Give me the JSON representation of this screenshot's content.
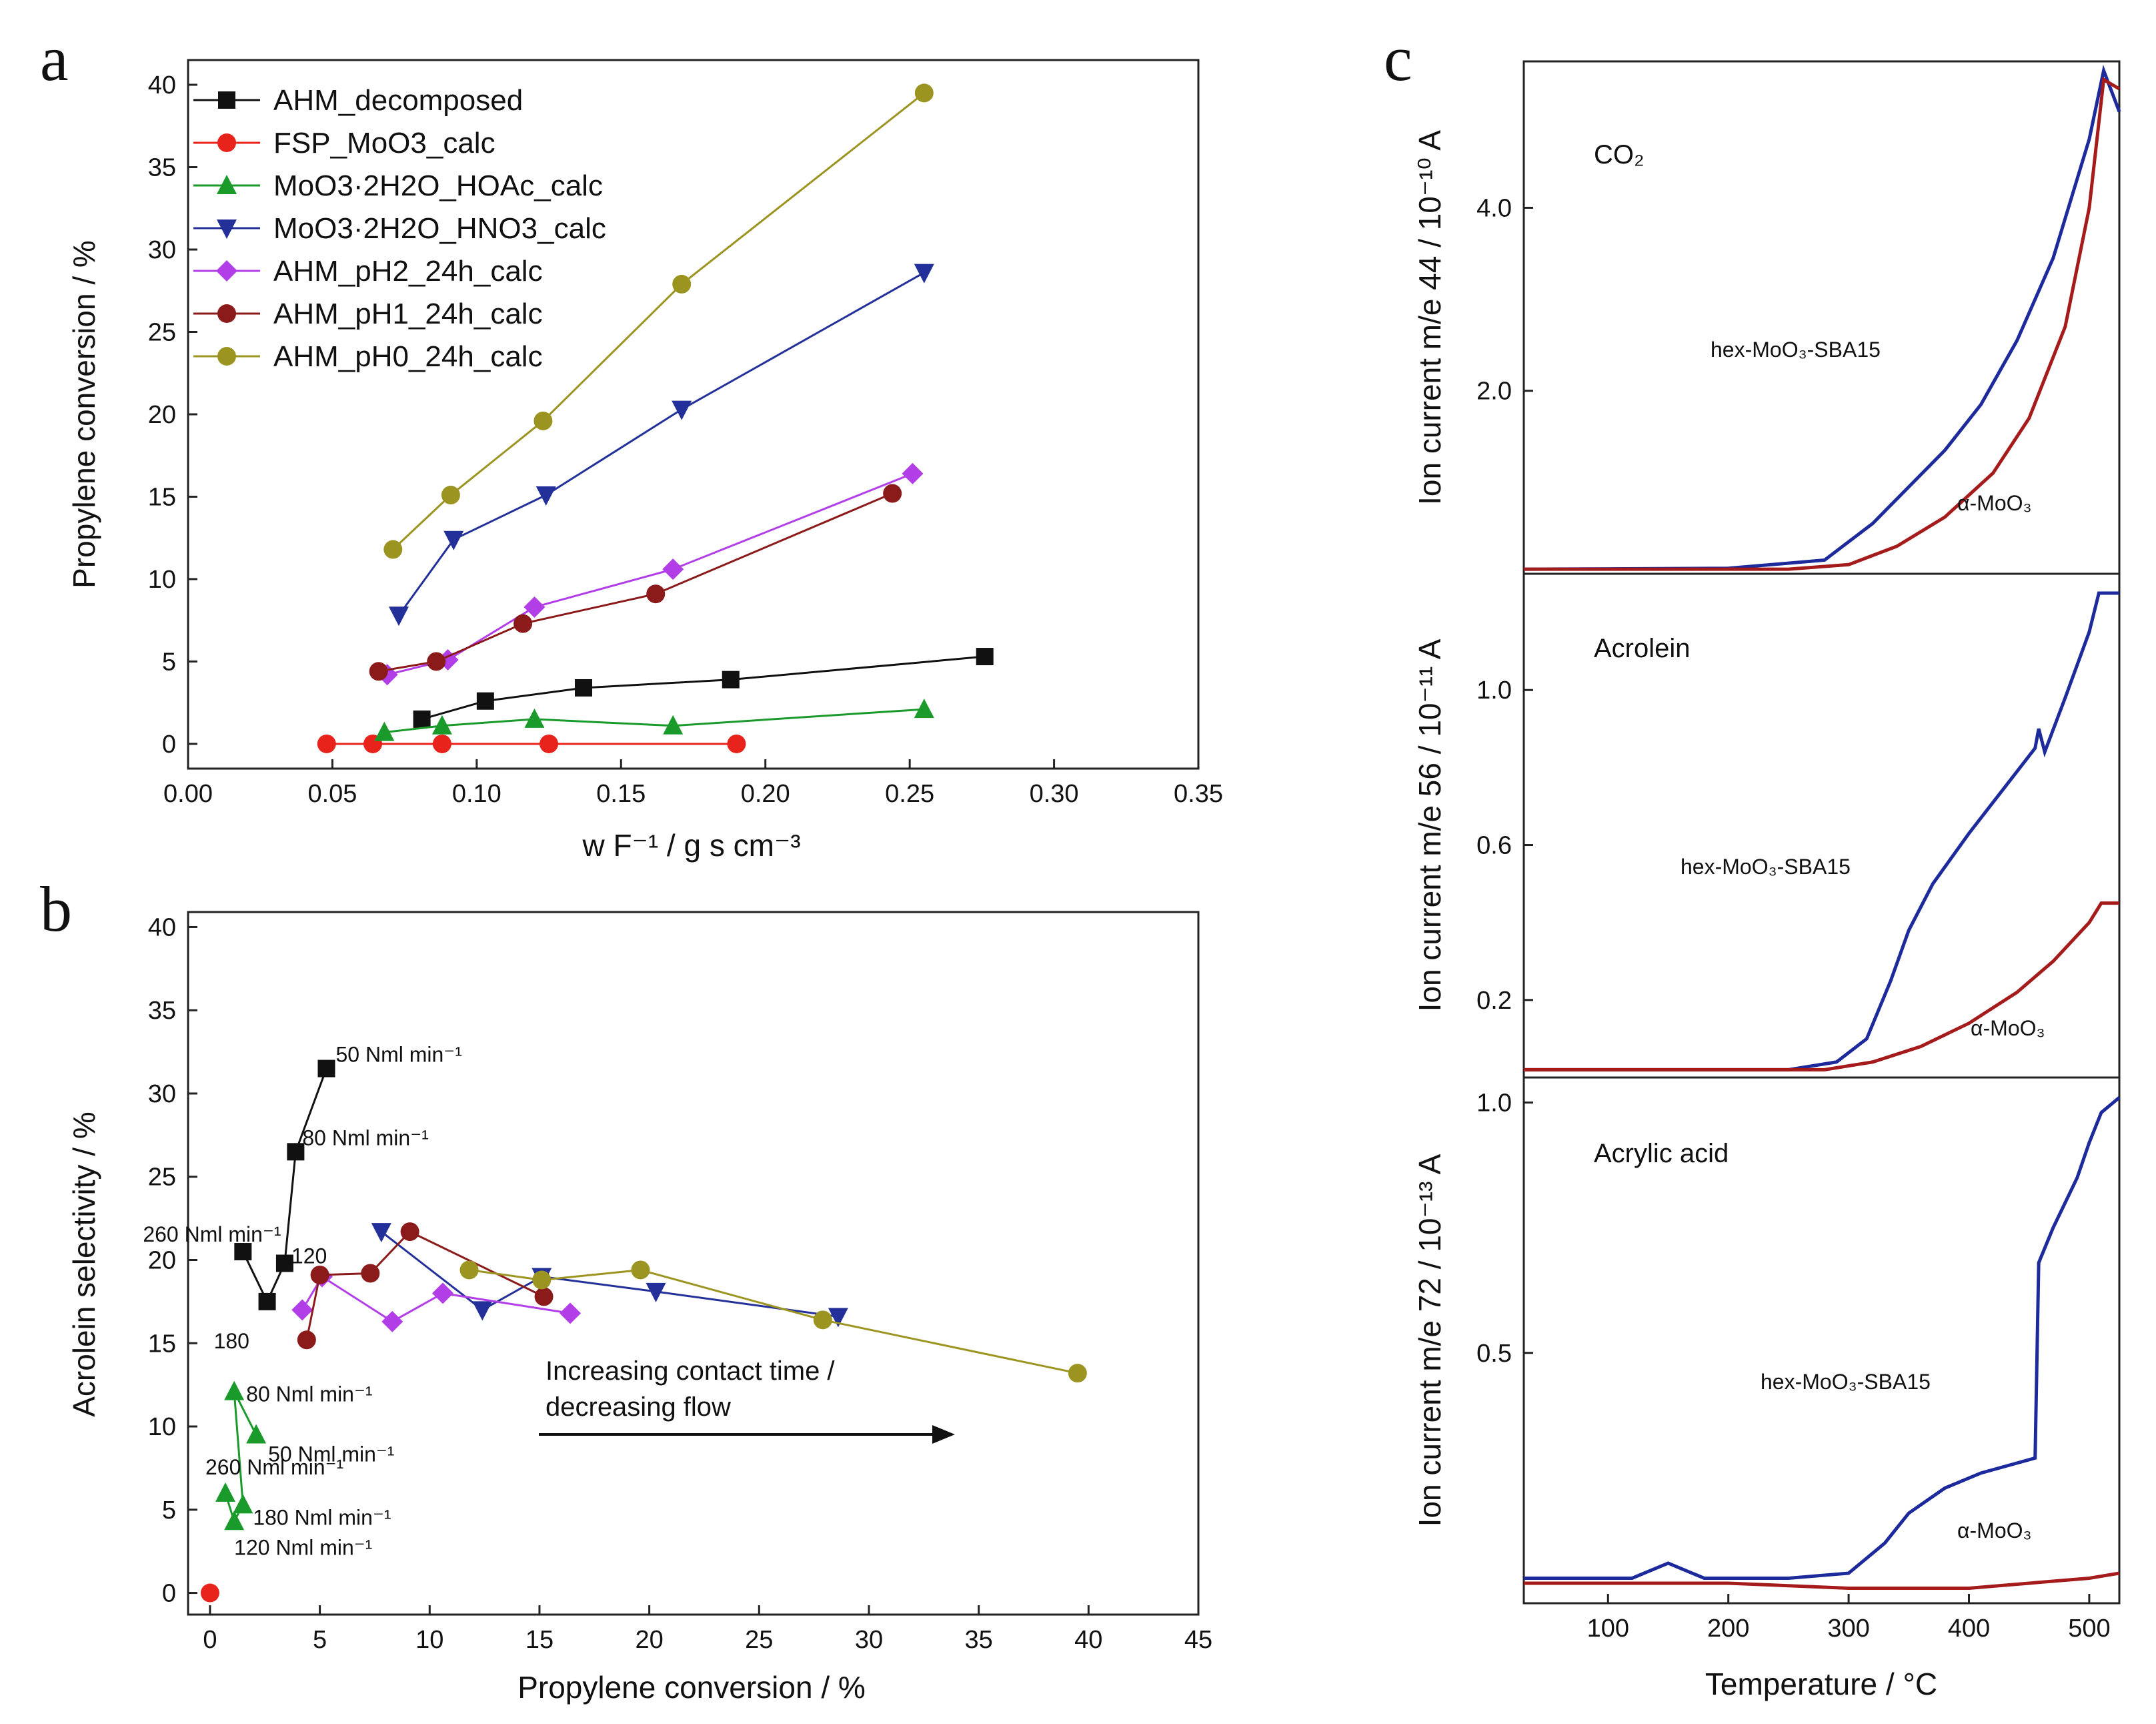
{
  "chart_data": [
    {
      "id": "a",
      "type": "line",
      "panel_label": "a",
      "xlabel": "w F⁻¹ / g s cm⁻³",
      "ylabel": "Propylene conversion / %",
      "xlim": [
        0,
        0.35
      ],
      "ylim": [
        0,
        40
      ],
      "xticks": [
        "0.00",
        "0.05",
        "0.10",
        "0.15",
        "0.20",
        "0.25",
        "0.30",
        "0.35"
      ],
      "xtick_values": [
        0,
        0.05,
        0.1,
        0.15,
        0.2,
        0.25,
        0.3,
        0.35
      ],
      "yticks": [
        "0",
        "5",
        "10",
        "15",
        "20",
        "25",
        "30",
        "35",
        "40"
      ],
      "ytick_values": [
        0,
        5,
        10,
        15,
        20,
        25,
        30,
        35,
        40
      ],
      "legend_position": "top-left",
      "series": [
        {
          "name": "AHM_decomposed",
          "color": "#111111",
          "marker": "square",
          "x": [
            0.081,
            0.103,
            0.137,
            0.188,
            0.276
          ],
          "y": [
            1.5,
            2.6,
            3.4,
            3.9,
            5.3
          ]
        },
        {
          "name": "FSP_MoO3_calc",
          "color": "#e8231b",
          "marker": "circle",
          "x": [
            0.048,
            0.064,
            0.088,
            0.125,
            0.19
          ],
          "y": [
            0,
            0,
            0,
            0,
            0
          ]
        },
        {
          "name": "MoO3·2H2O_HOAc_calc",
          "color": "#1a9a2a",
          "marker": "triangle-up",
          "x": [
            0.068,
            0.088,
            0.12,
            0.168,
            0.255
          ],
          "y": [
            0.7,
            1.1,
            1.5,
            1.1,
            2.1
          ]
        },
        {
          "name": "MoO3·2H2O_HNO3_calc",
          "color": "#23309a",
          "marker": "triangle-down",
          "x": [
            0.073,
            0.092,
            0.124,
            0.171,
            0.255
          ],
          "y": [
            7.8,
            12.4,
            15.1,
            20.3,
            28.6
          ]
        },
        {
          "name": "AHM_pH2_24h_calc",
          "color": "#b23ee8",
          "marker": "diamond",
          "x": [
            0.069,
            0.09,
            0.12,
            0.168,
            0.251
          ],
          "y": [
            4.2,
            5.1,
            8.3,
            10.6,
            16.4
          ]
        },
        {
          "name": "AHM_pH1_24h_calc",
          "color": "#8b1a1a",
          "marker": "circle",
          "x": [
            0.066,
            0.086,
            0.116,
            0.162,
            0.244
          ],
          "y": [
            4.4,
            5.0,
            7.3,
            9.1,
            15.2
          ]
        },
        {
          "name": "AHM_pH0_24h_calc",
          "color": "#9c9420",
          "marker": "circle",
          "x": [
            0.071,
            0.091,
            0.123,
            0.171,
            0.255
          ],
          "y": [
            11.8,
            15.1,
            19.6,
            27.9,
            39.5
          ]
        }
      ]
    },
    {
      "id": "b",
      "type": "scatter",
      "panel_label": "b",
      "xlabel": "Propylene conversion / %",
      "ylabel": "Acrolein selectivity / %",
      "xlim": [
        -1,
        45
      ],
      "ylim": [
        -1,
        40
      ],
      "xticks": [
        "0",
        "5",
        "10",
        "15",
        "20",
        "25",
        "30",
        "35",
        "40",
        "45"
      ],
      "xtick_values": [
        0,
        5,
        10,
        15,
        20,
        25,
        30,
        35,
        40,
        45
      ],
      "yticks": [
        "0",
        "5",
        "10",
        "15",
        "20",
        "25",
        "30",
        "35",
        "40"
      ],
      "ytick_values": [
        0,
        5,
        10,
        15,
        20,
        25,
        30,
        35,
        40
      ],
      "arrow_label_line1": "Increasing contact time /",
      "arrow_label_line2": "decreasing flow",
      "series": [
        {
          "name": "AHM_decomposed",
          "color": "#111111",
          "marker": "square",
          "x": [
            1.5,
            2.6,
            3.4,
            3.9,
            5.3
          ],
          "y": [
            20.5,
            17.5,
            19.8,
            26.5,
            31.5
          ],
          "labels": [
            "260 Nml min⁻¹",
            "180",
            "120",
            "80 Nml min⁻¹",
            "50 Nml min⁻¹"
          ]
        },
        {
          "name": "FSP_MoO3_calc",
          "color": "#e8231b",
          "marker": "circle",
          "x": [
            0
          ],
          "y": [
            0
          ]
        },
        {
          "name": "MoO3·2H2O_HOAc_calc",
          "color": "#1a9a2a",
          "marker": "triangle-up",
          "x": [
            0.7,
            1.1,
            1.5,
            1.1,
            2.1
          ],
          "y": [
            6.0,
            4.3,
            5.3,
            12.1,
            9.5
          ],
          "labels": [
            "260 Nml min⁻¹",
            "120 Nml min⁻¹",
            "180 Nml min⁻¹",
            "80 Nml min⁻¹",
            "50 Nml min⁻¹"
          ]
        },
        {
          "name": "MoO3·2H2O_HNO3_calc",
          "color": "#23309a",
          "marker": "triangle-down",
          "x": [
            7.8,
            12.4,
            15.1,
            20.3,
            28.6
          ],
          "y": [
            21.7,
            17.0,
            19.0,
            18.1,
            16.6
          ]
        },
        {
          "name": "AHM_pH2_24h_calc",
          "color": "#b23ee8",
          "marker": "diamond",
          "x": [
            4.2,
            5.1,
            8.3,
            10.6,
            16.4
          ],
          "y": [
            17.0,
            19.0,
            16.3,
            18.0,
            16.8
          ]
        },
        {
          "name": "AHM_pH1_24h_calc",
          "color": "#8b1a1a",
          "marker": "circle",
          "x": [
            4.4,
            5.0,
            7.3,
            9.1,
            15.2
          ],
          "y": [
            15.2,
            19.1,
            19.2,
            21.7,
            17.8
          ]
        },
        {
          "name": "AHM_pH0_24h_calc",
          "color": "#9c9420",
          "marker": "circle",
          "x": [
            11.8,
            15.1,
            19.6,
            27.9,
            39.5
          ],
          "y": [
            19.4,
            18.8,
            19.4,
            16.4,
            13.2
          ]
        }
      ]
    },
    {
      "id": "c1",
      "type": "line",
      "panel_label": "c",
      "title": "CO₂",
      "ylabel": "Ion current m/e 44 / 10⁻¹⁰ A",
      "xlim": [
        30,
        525
      ],
      "ylim": [
        0,
        5.6
      ],
      "yticks": [
        "2.0",
        "4.0"
      ],
      "ytick_values": [
        2.0,
        4.0
      ],
      "series": [
        {
          "name": "hex-MoO₃-SBA15",
          "color": "#1d2a9c",
          "x": [
            30,
            200,
            280,
            320,
            350,
            380,
            410,
            440,
            470,
            500,
            512,
            525
          ],
          "y": [
            0.05,
            0.06,
            0.15,
            0.55,
            0.95,
            1.35,
            1.85,
            2.55,
            3.45,
            4.75,
            5.5,
            5.05
          ]
        },
        {
          "name": "α-MoO₃",
          "color": "#a51b1b",
          "x": [
            30,
            250,
            300,
            340,
            380,
            420,
            450,
            480,
            500,
            512,
            525
          ],
          "y": [
            0.05,
            0.05,
            0.1,
            0.3,
            0.62,
            1.1,
            1.7,
            2.7,
            4.0,
            5.4,
            5.3
          ]
        }
      ]
    },
    {
      "id": "c2",
      "type": "line",
      "title": "Acrolein",
      "ylabel": "Ion current m/e 56 / 10⁻¹¹ A",
      "xlim": [
        30,
        525
      ],
      "ylim": [
        0,
        1.3
      ],
      "yticks": [
        "0.2",
        "0.6",
        "1.0"
      ],
      "ytick_values": [
        0.2,
        0.6,
        1.0
      ],
      "series": [
        {
          "name": "hex-MoO₃-SBA15",
          "color": "#1d2a9c",
          "x": [
            30,
            250,
            290,
            315,
            335,
            350,
            370,
            400,
            430,
            455,
            458,
            463,
            480,
            500,
            508,
            525
          ],
          "y": [
            0.02,
            0.02,
            0.04,
            0.1,
            0.25,
            0.38,
            0.5,
            0.63,
            0.75,
            0.85,
            0.9,
            0.84,
            0.98,
            1.15,
            1.25,
            1.25
          ]
        },
        {
          "name": "α-MoO₃",
          "color": "#a51b1b",
          "x": [
            30,
            280,
            320,
            360,
            400,
            440,
            470,
            500,
            510,
            525
          ],
          "y": [
            0.02,
            0.02,
            0.04,
            0.08,
            0.14,
            0.22,
            0.3,
            0.4,
            0.45,
            0.45
          ]
        }
      ]
    },
    {
      "id": "c3",
      "type": "line",
      "title": "Acrylic acid",
      "xlabel": "Temperature / °C",
      "ylabel": "Ion current m/e 72 / 10⁻¹³ A",
      "xlim": [
        30,
        525
      ],
      "ylim": [
        0,
        1.05
      ],
      "xticks": [
        "100",
        "200",
        "300",
        "400",
        "500"
      ],
      "xtick_values": [
        100,
        200,
        300,
        400,
        500
      ],
      "yticks": [
        "0.5",
        "1.0"
      ],
      "ytick_values": [
        0.5,
        1.0
      ],
      "series": [
        {
          "name": "hex-MoO₃-SBA15",
          "color": "#1d2a9c",
          "x": [
            30,
            120,
            150,
            180,
            250,
            300,
            330,
            350,
            380,
            410,
            440,
            455,
            458,
            470,
            480,
            490,
            500,
            510,
            525
          ],
          "y": [
            0.05,
            0.05,
            0.08,
            0.05,
            0.05,
            0.06,
            0.12,
            0.18,
            0.23,
            0.26,
            0.28,
            0.29,
            0.68,
            0.75,
            0.8,
            0.85,
            0.92,
            0.98,
            1.01
          ]
        },
        {
          "name": "α-MoO₃",
          "color": "#a51b1b",
          "x": [
            30,
            200,
            300,
            400,
            450,
            500,
            525
          ],
          "y": [
            0.04,
            0.04,
            0.03,
            0.03,
            0.04,
            0.05,
            0.06
          ]
        }
      ]
    }
  ]
}
